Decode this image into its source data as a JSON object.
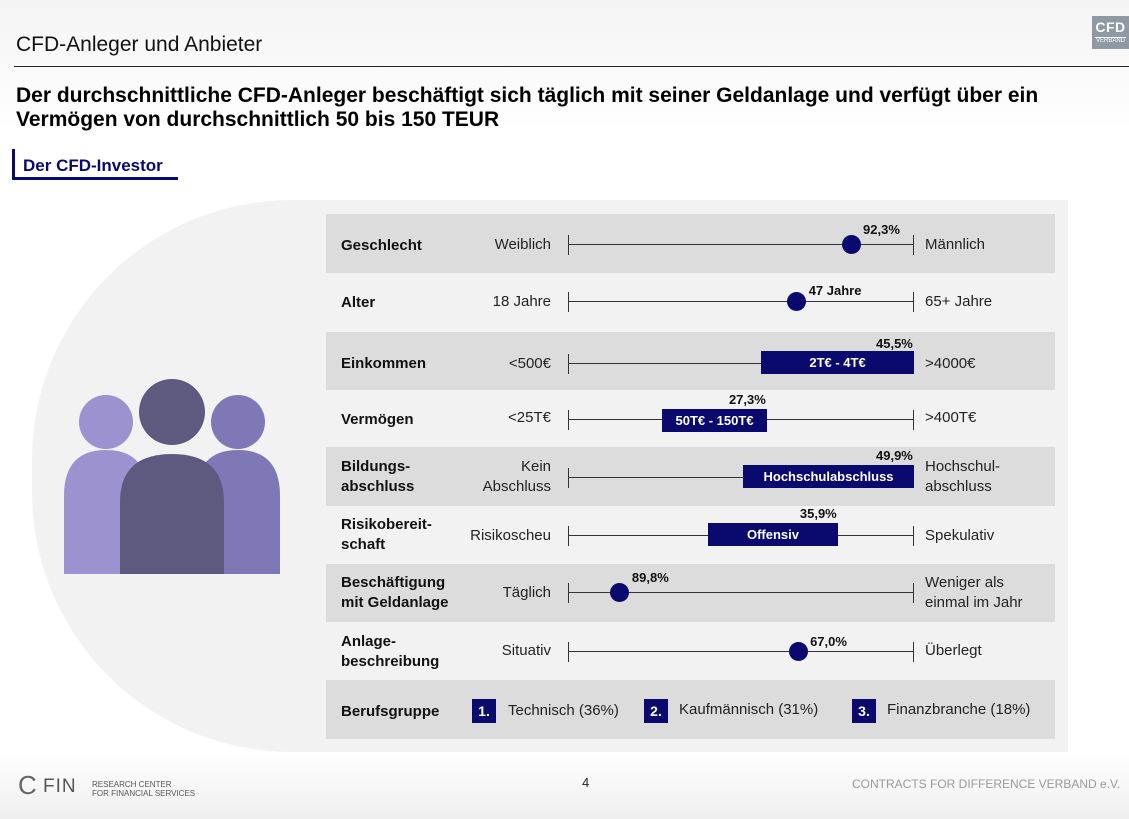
{
  "header": {
    "section_title": "CFD-Anleger und Anbieter",
    "logo_text": "CFD",
    "logo_subtext": "VERBAND",
    "headline_line1": "Der durchschnittliche CFD-Anleger beschäftigt sich täglich mit seiner Geldanlage und verfügt über ein",
    "headline_line2": "Vermögen von durchschnittlich 50 bis 150 TEUR",
    "tab_label": "Der CFD-Investor"
  },
  "rows": [
    {
      "label": "Geschlecht",
      "left": "Weiblich",
      "right": "Männlich",
      "type": "dot",
      "position": 0.818,
      "value": "92,3%"
    },
    {
      "label": "Alter",
      "left": "18 Jahre",
      "right": "65+ Jahre",
      "type": "dot",
      "position": 0.661,
      "value": "47 Jahre"
    },
    {
      "label": "Einkommen",
      "left": "<500€",
      "right": ">4000€",
      "type": "bar",
      "start": 0.558,
      "end": 1.0,
      "bar_label": "2T€ - 4T€",
      "value": "45,5%"
    },
    {
      "label": "Vermögen",
      "left": "<25T€",
      "right": ">400T€",
      "type": "bar",
      "start": 0.272,
      "end": 0.575,
      "bar_label": "50T€ - 150T€",
      "value": "27,3%"
    },
    {
      "label_line1": "Bildungs-",
      "label_line2": "abschluss",
      "left_line1": "Kein",
      "left_line2": "Abschluss",
      "right_line1": "Hochschul-",
      "right_line2": "abschluss",
      "type": "bar",
      "start": 0.506,
      "end": 1.0,
      "bar_label": "Hochschulabschluss",
      "value": "49,9%"
    },
    {
      "label_line1": "Risikobereit-",
      "label_line2": "schaft",
      "left": "Risikoscheu",
      "right": "Spekulativ",
      "type": "bar",
      "start": 0.405,
      "end": 0.78,
      "bar_label": "Offensiv",
      "value": "35,9%"
    },
    {
      "label_line1": "Beschäftigung",
      "label_line2": "mit Geldanlage",
      "left": "Täglich",
      "right_line1": "Weniger als",
      "right_line2": "einmal im Jahr",
      "type": "dot",
      "position": 0.15,
      "value": "89,8%"
    },
    {
      "label_line1": "Anlage-",
      "label_line2": "beschreibung",
      "left": "Situativ",
      "right": "Überlegt",
      "type": "dot",
      "position": 0.665,
      "value": "67,0%"
    }
  ],
  "occupation": {
    "label": "Berufsgruppe",
    "items": [
      {
        "num": "1.",
        "text": "Technisch (36%)"
      },
      {
        "num": "2.",
        "text": "Kaufmännisch (31%)"
      },
      {
        "num": "3.",
        "text": "Finanzbranche (18%)"
      }
    ]
  },
  "footer": {
    "cfin_c": "C",
    "cfin_fin": "FIN",
    "research_line1": "RESEARCH CENTER",
    "research_line2": "FOR FINANCIAL SERVICES",
    "page_number": "4",
    "right_text": "CONTRACTS FOR DIFFERENCE VERBAND e.V."
  },
  "colors": {
    "accent": "#0a0a6e",
    "row_shade": "#dcdcdc",
    "panel": "#f2f2f2",
    "person_light": "#9b92cf",
    "person_mid": "#7f78b6",
    "person_dark": "#5e5a7f"
  }
}
